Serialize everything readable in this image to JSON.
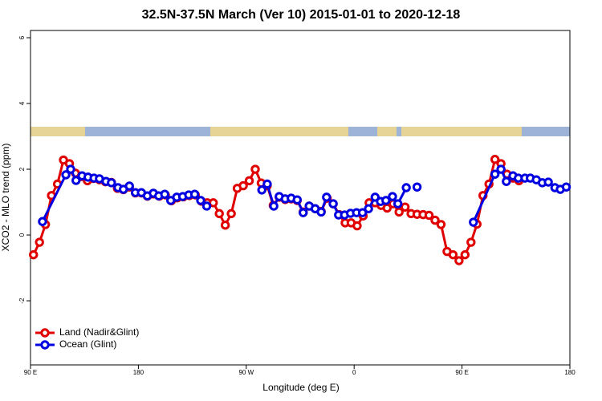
{
  "chart_data": {
    "type": "line",
    "title": "32.5N-37.5N March (Ver 10)   2015-01-01 to 2020-12-18",
    "xlabel": "Longitude (deg E)",
    "ylabel": "XCO2 - MLO trend (ppm)",
    "xlim": [
      90,
      540
    ],
    "ylim": [
      -3.95,
      6.22
    ],
    "xticks": [
      {
        "value": 90,
        "label": "90 E"
      },
      180,
      {
        "value": 270,
        "label": "90 W"
      },
      {
        "value": 360,
        "label": "0"
      },
      {
        "value": 450,
        "label": "90 E"
      },
      {
        "value": 540,
        "label": "180"
      }
    ],
    "yticks": [
      -2,
      0,
      2,
      4,
      6
    ],
    "legend": "bottom-left",
    "series": [
      {
        "name": "Land (Nadir&Glint)",
        "color": "#e00000",
        "x": [
          92.5,
          97.5,
          102.5,
          107.5,
          112.5,
          117.5,
          122.5,
          127.5,
          132.5,
          137.5,
          142.5,
          147.5,
          152.5,
          157.5,
          162.5,
          167.5,
          172.5,
          177.5,
          182.5,
          187.5,
          192.5,
          197.5,
          202.5,
          207.5,
          212.5,
          217.5,
          222.5,
          227.5,
          232.5,
          237.5,
          242.5,
          247.5,
          252.5,
          257.5,
          262.5,
          267.5,
          272.5,
          277.5,
          282.5,
          287.5,
          292.5,
          297.5,
          302.5,
          307.5,
          312.5,
          317.5,
          322.5,
          327.5,
          332.5,
          337.5,
          342.5,
          347.5,
          352.5,
          357.5,
          362.5,
          367.5,
          372.5,
          377.5,
          382.5,
          387.5,
          392.5,
          397.5,
          402.5,
          407.5,
          412.5,
          417.5,
          422.5,
          427.5,
          432.5,
          437.5,
          442.5,
          447.5,
          452.5,
          457.5,
          462.5,
          467.5,
          472.5,
          477.5,
          482.5,
          487.5,
          492.5,
          497.5
        ],
        "values": [
          -0.6,
          -0.22,
          0.32,
          1.2,
          1.55,
          2.28,
          2.17,
          1.88,
          1.78,
          1.65,
          1.72,
          1.68,
          1.62,
          1.6,
          1.42,
          1.38,
          1.46,
          1.28,
          1.28,
          1.18,
          1.25,
          1.18,
          1.22,
          1.04,
          1.13,
          1.16,
          1.2,
          1.22,
          1.03,
          0.98,
          0.98,
          0.65,
          0.3,
          0.65,
          1.42,
          1.5,
          1.65,
          2.0,
          1.58,
          1.5,
          0.9,
          1.15,
          1.08,
          1.1,
          1.05,
          0.7,
          0.88,
          0.8,
          0.72,
          1.12,
          0.95,
          0.62,
          0.37,
          0.37,
          0.28,
          0.58,
          0.98,
          0.98,
          0.9,
          0.82,
          0.95,
          0.7,
          0.85,
          0.65,
          0.63,
          0.62,
          0.6,
          0.45,
          0.32,
          -0.5,
          -0.6,
          -0.78,
          -0.6,
          -0.22,
          0.33,
          1.2,
          1.55,
          2.3,
          2.17,
          1.85,
          1.73,
          1.65
        ]
      },
      {
        "name": "Ocean (Glint)",
        "color": "#0000e0",
        "x": [
          100,
          119.5,
          123.5,
          128,
          133,
          138,
          143,
          147.5,
          153,
          157.5,
          163,
          167.5,
          172.5,
          177.5,
          182.5,
          187.5,
          192.5,
          197,
          202,
          207,
          212,
          217,
          222,
          227,
          232,
          237,
          242,
          283,
          287.5,
          293,
          297.5,
          302.5,
          307.5,
          312.5,
          317.5,
          322.5,
          327.5,
          332.5,
          337,
          342.5,
          347,
          352,
          357,
          362,
          367,
          372,
          377.5,
          382,
          386.5,
          392,
          396.5,
          403.5,
          408,
          412.5,
          450,
          459.5,
          477.5,
          482.5,
          487,
          492.5,
          497,
          502.5,
          507,
          512,
          517,
          522,
          527.5,
          532,
          537
        ],
        "values": [
          0.41,
          1.83,
          2.0,
          1.66,
          1.8,
          1.76,
          1.73,
          1.71,
          1.63,
          1.59,
          1.44,
          1.39,
          1.49,
          1.29,
          1.29,
          1.19,
          1.27,
          1.19,
          1.24,
          1.05,
          1.15,
          1.17,
          1.22,
          1.24,
          1.05,
          0.88,
          null,
          1.37,
          1.55,
          0.88,
          1.17,
          1.1,
          1.12,
          1.07,
          0.68,
          0.88,
          0.8,
          0.7,
          1.15,
          0.95,
          0.61,
          0.61,
          0.66,
          0.68,
          0.68,
          0.8,
          1.15,
          1.02,
          1.05,
          1.17,
          0.95,
          1.44,
          null,
          1.46,
          null,
          0.39,
          1.85,
          2.0,
          1.63,
          1.8,
          1.73,
          1.73,
          1.73,
          1.68,
          1.59,
          1.61,
          1.44,
          1.39,
          1.46
        ]
      }
    ]
  }
}
